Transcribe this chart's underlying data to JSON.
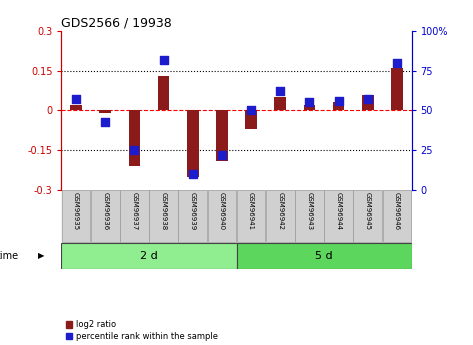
{
  "title": "GDS2566 / 19938",
  "samples": [
    "GSM96935",
    "GSM96936",
    "GSM96937",
    "GSM96938",
    "GSM96939",
    "GSM96940",
    "GSM96941",
    "GSM96942",
    "GSM96943",
    "GSM96944",
    "GSM96945",
    "GSM96946"
  ],
  "log2_ratio": [
    0.02,
    -0.01,
    -0.21,
    0.13,
    -0.25,
    -0.19,
    -0.07,
    0.05,
    0.02,
    0.03,
    0.06,
    0.16
  ],
  "percentile_rank": [
    57,
    43,
    25,
    82,
    10,
    22,
    50,
    62,
    55,
    56,
    57,
    80
  ],
  "groups": [
    {
      "label": "2 d",
      "start": 0,
      "end": 6,
      "color": "#90EE90"
    },
    {
      "label": "5 d",
      "start": 6,
      "end": 12,
      "color": "#5CD65C"
    }
  ],
  "time_label": "time",
  "ylim_left": [
    -0.3,
    0.3
  ],
  "ylim_right": [
    0,
    100
  ],
  "yticks_left": [
    -0.3,
    -0.15,
    0.0,
    0.15,
    0.3
  ],
  "yticks_right": [
    0,
    25,
    50,
    75,
    100
  ],
  "ytick_labels_left": [
    "-0.3",
    "-0.15",
    "0",
    "0.15",
    "0.3"
  ],
  "ytick_labels_right": [
    "0",
    "25",
    "50",
    "75",
    "100%"
  ],
  "hlines": [
    -0.15,
    0.0,
    0.15
  ],
  "hline_styles": [
    "dotted",
    "dashed",
    "dotted"
  ],
  "hline_colors": [
    "black",
    "red",
    "black"
  ],
  "bar_color": "#8B1A1A",
  "dot_color": "#1C1CCD",
  "bar_width": 0.4,
  "dot_size": 28,
  "left_tick_color": "#CC0000",
  "right_tick_color": "#0000CC",
  "bg_color": "#ffffff",
  "plot_bg": "#ffffff",
  "sample_box_color": "#d0d0d0",
  "legend_items": [
    {
      "label": "log2 ratio",
      "color": "#8B1A1A"
    },
    {
      "label": "percentile rank within the sample",
      "color": "#1C1CCD"
    }
  ]
}
